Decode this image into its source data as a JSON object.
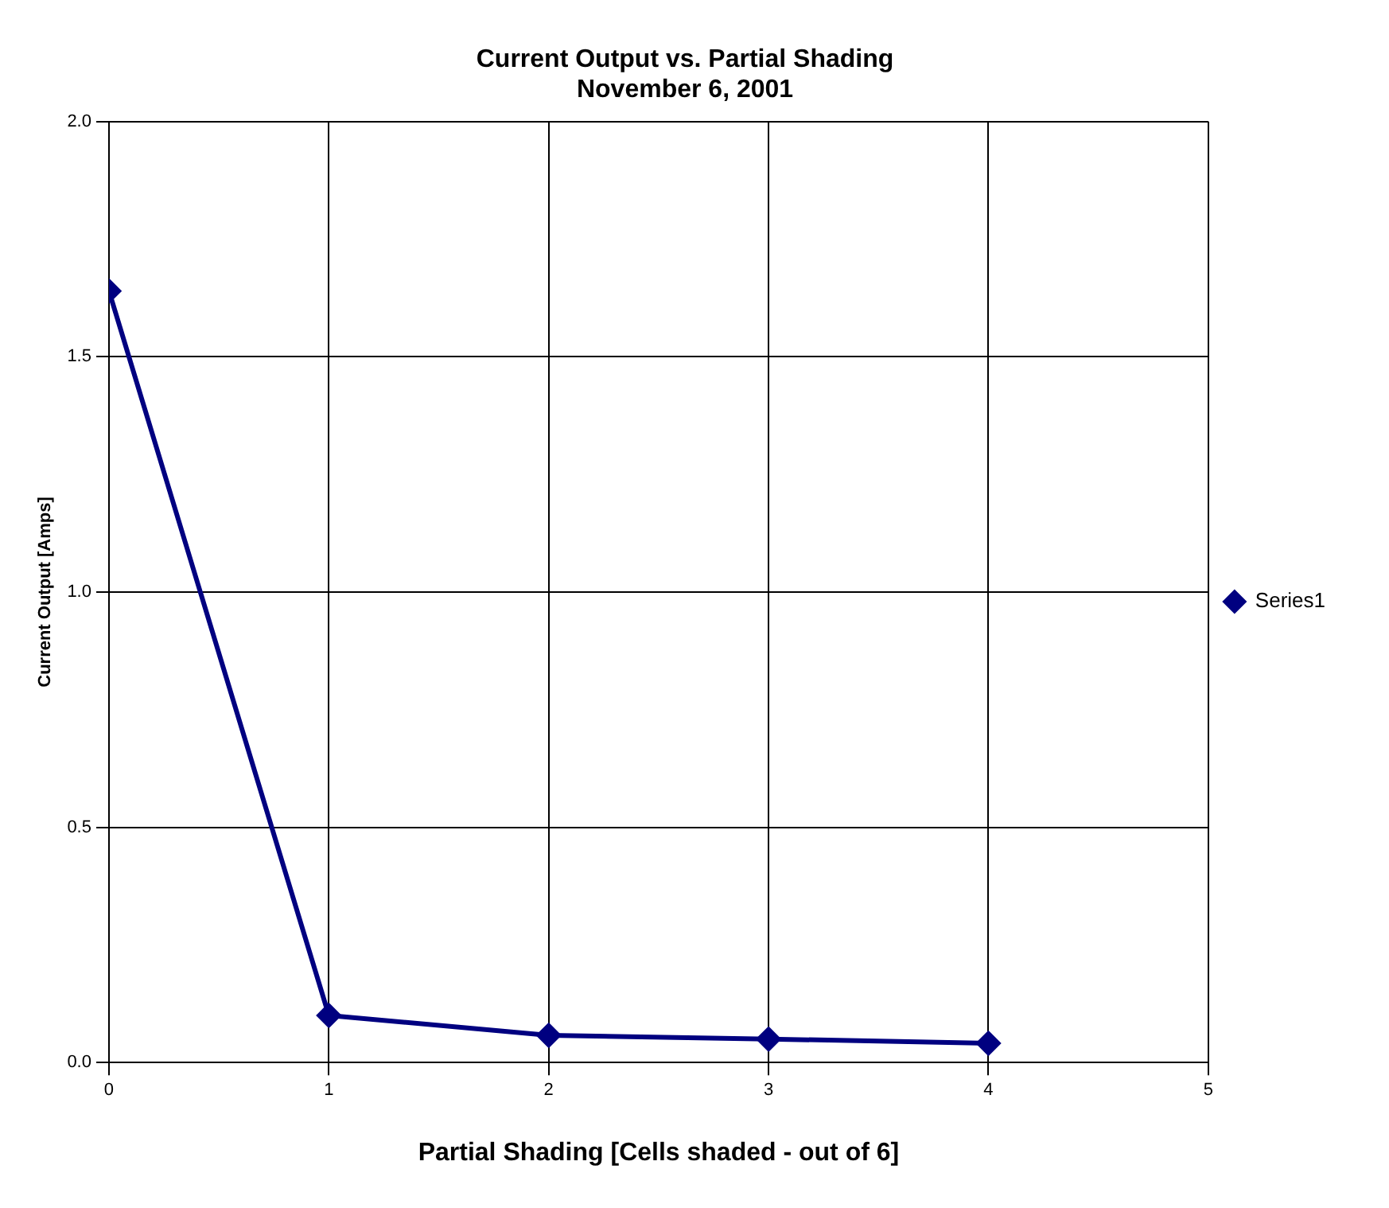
{
  "chart_data": {
    "type": "line",
    "title": "Current Output vs. Partial Shading",
    "subtitle": "November 6, 2001",
    "xlabel": "Partial Shading [Cells shaded - out of 6]",
    "ylabel": "Current Output [Amps]",
    "x": [
      0,
      1,
      2,
      3,
      4
    ],
    "series": [
      {
        "name": "Series1",
        "color": "#000080",
        "values": [
          1.64,
          0.1,
          0.058,
          0.05,
          0.041
        ]
      }
    ],
    "xlim": [
      0,
      5
    ],
    "xticks": [
      0,
      1,
      2,
      3,
      4,
      5
    ],
    "ylim": [
      0,
      2
    ],
    "yticks": [
      {
        "value": 0,
        "label": "0.0"
      },
      {
        "value": 0.5,
        "label": "0.5"
      },
      {
        "value": 1,
        "label": "1.0"
      },
      {
        "value": 1.5,
        "label": "1.5"
      },
      {
        "value": 2,
        "label": "2.0"
      }
    ],
    "grid": true,
    "legend": "right",
    "marker": "diamond",
    "line_style": "solid"
  }
}
